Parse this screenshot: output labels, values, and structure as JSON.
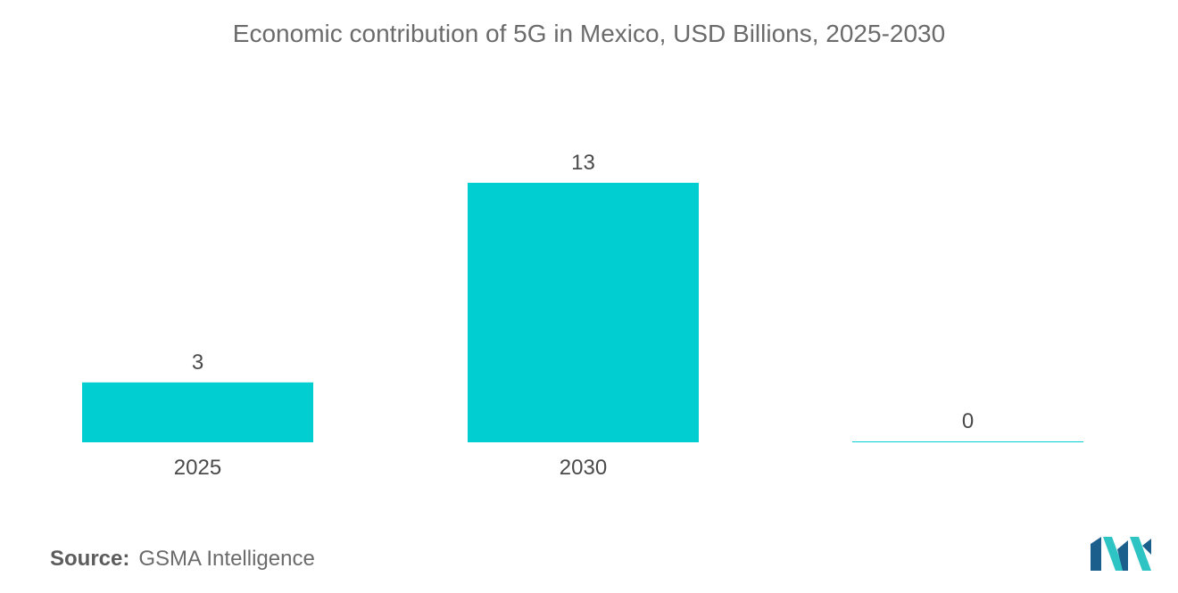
{
  "chart_data": {
    "type": "bar",
    "title": "Economic contribution of 5G in Mexico, USD Billions, 2025-2030",
    "categories": [
      "2025",
      "2030",
      ""
    ],
    "values": [
      3,
      13,
      0
    ],
    "value_labels": [
      "3",
      "13",
      "0"
    ],
    "xlabel": "",
    "ylabel": "",
    "ylim": [
      0,
      13
    ],
    "grid": false,
    "legend": "none",
    "bar_color": "#00ced1"
  },
  "source": {
    "label": "Source:",
    "text": "GSMA Intelligence"
  },
  "logo": {
    "icon": "mordor-intelligence-logo-icon",
    "colors": [
      "#1b5f8c",
      "#2ec4c4"
    ]
  }
}
